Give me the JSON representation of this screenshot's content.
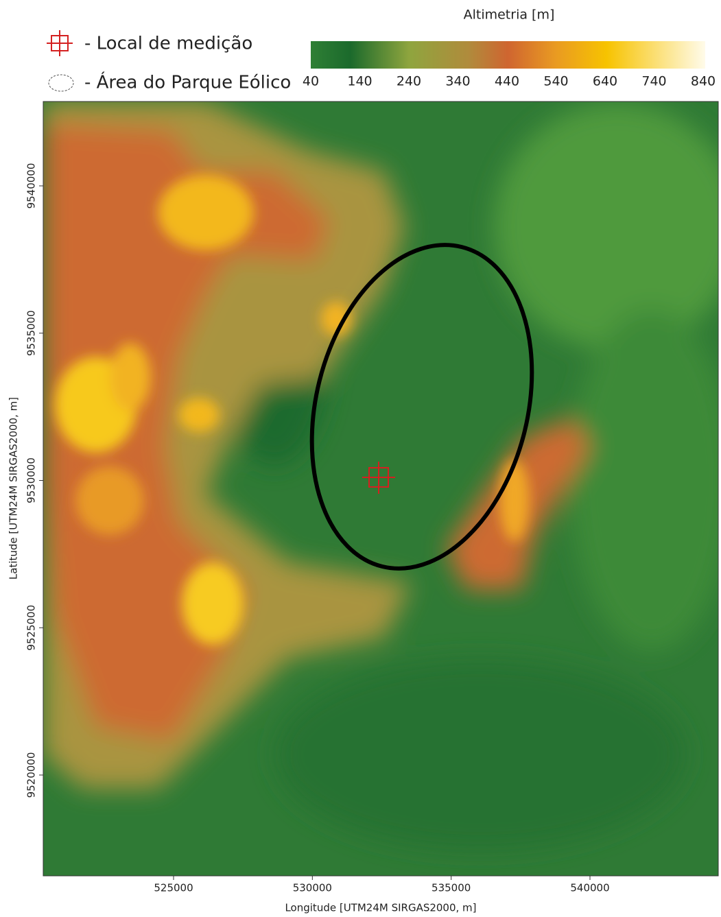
{
  "legend": {
    "items": [
      {
        "label": "- Local de medição"
      },
      {
        "label": "- Área do Parque Eólico"
      }
    ]
  },
  "colorbar": {
    "title": "Altimetria [m]",
    "ticks": [
      40,
      140,
      240,
      340,
      440,
      540,
      640,
      740,
      840
    ]
  },
  "map": {
    "x_axis": {
      "label": "Longitude [UTM24M SIRGAS2000, m]",
      "ticks": [
        525000,
        530000,
        535000,
        540000
      ]
    },
    "y_axis": {
      "label": "Latitude [UTM24M SIRGAS2000, m]",
      "ticks": [
        9540000,
        9535000,
        9530000,
        9525000,
        9520000
      ]
    }
  }
}
